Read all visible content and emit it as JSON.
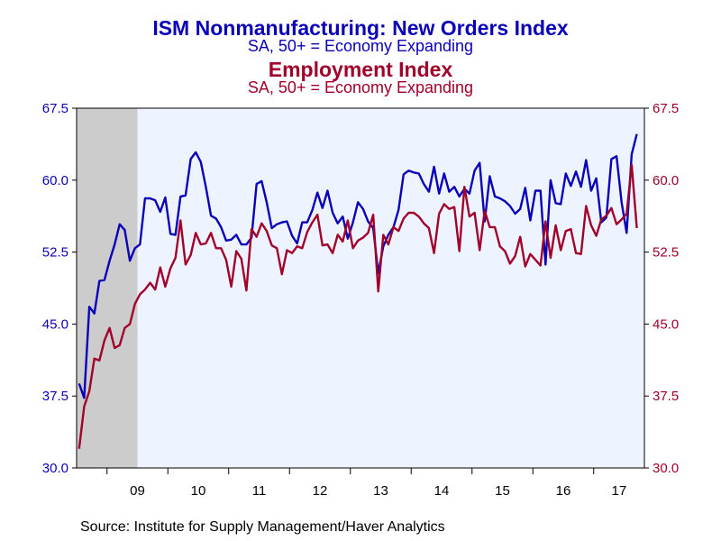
{
  "chart_data": {
    "type": "line",
    "title": "ISM Nonmanufacturing: New Orders Index",
    "subtitle": "SA, 50+ = Economy Expanding",
    "title2": "Employment Index",
    "subtitle2": "SA, 50+ = Economy Expanding",
    "x_tick_labels": [
      "09",
      "10",
      "11",
      "12",
      "13",
      "14",
      "15",
      "16",
      "17"
    ],
    "y_ticks": [
      "30.0",
      "37.5",
      "45.0",
      "52.5",
      "60.0",
      "67.5"
    ],
    "ylim": [
      30,
      67.5
    ],
    "x_start": "2008-07",
    "recession_shading": {
      "from": "2008-07",
      "to": "2009-06"
    },
    "colors": {
      "new_orders": "#0a00b8",
      "employment": "#a0002a",
      "plot_bg": "#eef4ff",
      "recession": "#cccccc"
    },
    "series": [
      {
        "name": "ISM Nonmanufacturing: New Orders Index",
        "axis": "left",
        "values": [
          38.8,
          37.3,
          46.8,
          46.1,
          49.5,
          49.6,
          51.6,
          53.3,
          55.4,
          54.8,
          51.6,
          52.9,
          53.3,
          58.1,
          58.1,
          57.9,
          56.7,
          58.2,
          54.4,
          54.3,
          58.3,
          58.4,
          62.2,
          62.9,
          61.9,
          59.3,
          56.3,
          56.0,
          55.1,
          53.7,
          53.8,
          54.3,
          53.3,
          53.3,
          54.0,
          59.6,
          59.9,
          57.7,
          55.0,
          55.4,
          55.6,
          55.7,
          54.2,
          53.4,
          55.6,
          55.6,
          56.9,
          58.7,
          57.1,
          58.9,
          56.6,
          55.5,
          56.2,
          53.9,
          55.6,
          57.7,
          57.0,
          55.7,
          55.0,
          50.3,
          53.1,
          54.3,
          55.1,
          56.9,
          60.6,
          61.0,
          60.8,
          60.7,
          59.6,
          58.8,
          61.4,
          58.6,
          60.7,
          58.8,
          59.3,
          58.3,
          59.1,
          58.6,
          61.0,
          61.8,
          55.7,
          60.4,
          58.3,
          58.1,
          57.8,
          57.3,
          56.5,
          57.0,
          59.2,
          55.8,
          58.9,
          58.9,
          51.2,
          60.0,
          57.6,
          57.5,
          60.7,
          59.4,
          60.9,
          59.3,
          62.1,
          58.9,
          60.2,
          55.6,
          56.1,
          62.2,
          62.5,
          57.7,
          54.5,
          62.7,
          64.8
        ]
      },
      {
        "name": "Employment Index",
        "axis": "right",
        "values": [
          32.0,
          36.4,
          38.0,
          41.4,
          41.2,
          43.3,
          44.6,
          42.5,
          42.8,
          44.6,
          45.0,
          47.1,
          48.1,
          48.6,
          49.3,
          48.6,
          50.9,
          48.9,
          50.8,
          51.9,
          55.8,
          51.2,
          52.2,
          54.5,
          53.3,
          53.4,
          54.5,
          52.9,
          52.9,
          51.7,
          48.9,
          52.6,
          51.8,
          48.5,
          54.9,
          54.1,
          55.5,
          54.7,
          53.2,
          52.9,
          50.2,
          52.7,
          52.4,
          53.1,
          52.9,
          54.6,
          55.6,
          56.4,
          53.2,
          53.3,
          52.4,
          54.3,
          53.6,
          55.8,
          52.9,
          53.7,
          54.0,
          54.5,
          56.4,
          48.4,
          54.3,
          53.3,
          55.1,
          54.7,
          56.0,
          56.6,
          56.6,
          56.2,
          55.5,
          55.0,
          52.4,
          56.5,
          57.5,
          57.0,
          57.2,
          52.6,
          59.3,
          56.2,
          56.6,
          52.7,
          56.8,
          55.1,
          55.1,
          53.1,
          52.6,
          51.3,
          52.1,
          54.1,
          51.0,
          52.3,
          51.7,
          51.1,
          55.7,
          51.9,
          55.3,
          52.7,
          54.7,
          54.9,
          52.4,
          52.3,
          57.3,
          55.3,
          54.2,
          55.9,
          56.3,
          57.1,
          55.4,
          55.9,
          56.5,
          61.6,
          55.0
        ]
      }
    ],
    "source": "Source:  Institute for Supply Management/Haver Analytics"
  }
}
